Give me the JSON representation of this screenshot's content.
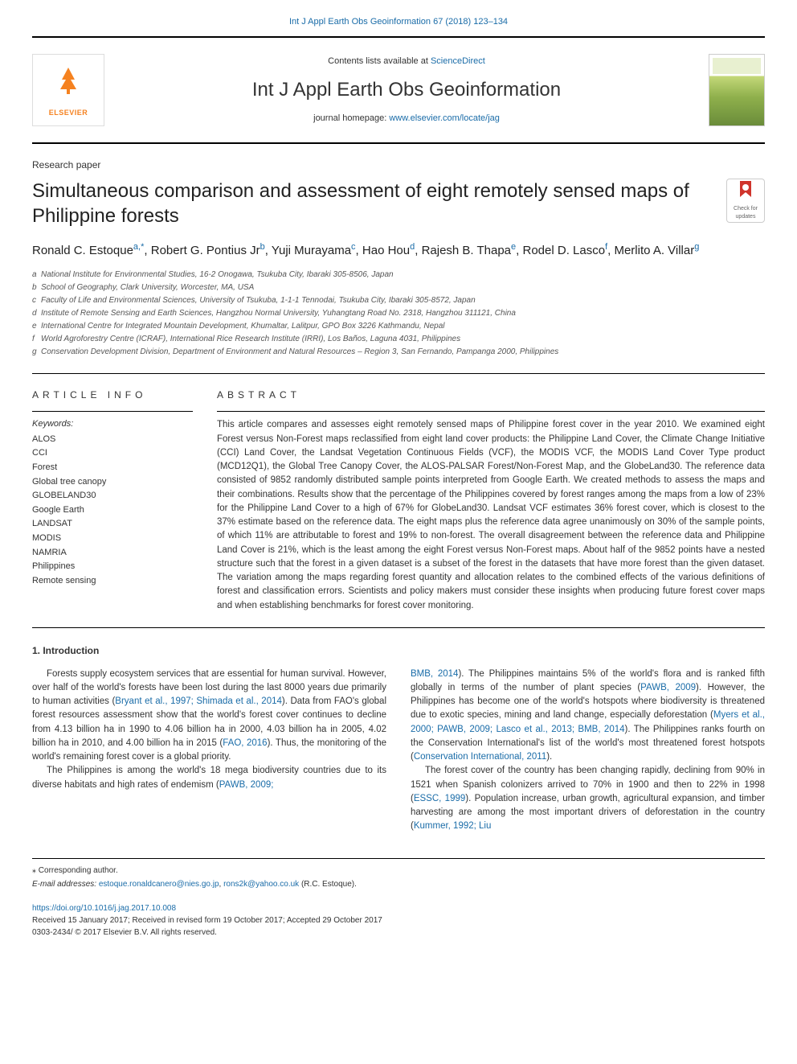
{
  "topLink": "Int J Appl Earth Obs Geoinformation 67 (2018) 123–134",
  "masthead": {
    "elsevier": "ELSEVIER",
    "contents_prefix": "Contents lists available at ",
    "contents_link": "ScienceDirect",
    "journal_title": "Int J Appl Earth Obs Geoinformation",
    "homepage_prefix": "journal homepage: ",
    "homepage_link": "www.elsevier.com/locate/jag"
  },
  "article_type": "Research paper",
  "title": "Simultaneous comparison and assessment of eight remotely sensed maps of Philippine forests",
  "updates_badge": {
    "line1": "Check for",
    "line2": "updates"
  },
  "authors": [
    {
      "name": "Ronald C. Estoque",
      "aff": "a",
      "corr": ",*"
    },
    {
      "name": "Robert G. Pontius  Jr",
      "aff": "b",
      "corr": ""
    },
    {
      "name": "Yuji Murayama",
      "aff": "c",
      "corr": ""
    },
    {
      "name": "Hao Hou",
      "aff": "d",
      "corr": ""
    },
    {
      "name": "Rajesh B. Thapa",
      "aff": "e",
      "corr": ""
    },
    {
      "name": "Rodel D. Lasco",
      "aff": "f",
      "corr": ""
    },
    {
      "name": "Merlito A. Villar",
      "aff": "g",
      "corr": ""
    }
  ],
  "affiliations": [
    {
      "marker": "a",
      "text": "National Institute for Environmental Studies, 16-2 Onogawa, Tsukuba City, Ibaraki 305-8506, Japan"
    },
    {
      "marker": "b",
      "text": "School of Geography, Clark University, Worcester, MA, USA"
    },
    {
      "marker": "c",
      "text": "Faculty of Life and Environmental Sciences, University of Tsukuba, 1-1-1 Tennodai, Tsukuba City, Ibaraki 305-8572, Japan"
    },
    {
      "marker": "d",
      "text": "Institute of Remote Sensing and Earth Sciences, Hangzhou Normal University, Yuhangtang Road No. 2318, Hangzhou 311121, China"
    },
    {
      "marker": "e",
      "text": "International Centre for Integrated Mountain Development, Khumaltar, Lalitpur, GPO Box 3226 Kathmandu, Nepal"
    },
    {
      "marker": "f",
      "text": "World Agroforestry Centre (ICRAF), International Rice Research Institute (IRRI), Los Baños, Laguna 4031, Philippines"
    },
    {
      "marker": "g",
      "text": "Conservation Development Division, Department of Environment and Natural Resources – Region 3, San Fernando, Pampanga 2000, Philippines"
    }
  ],
  "article_info": {
    "heading": "ARTICLE INFO",
    "keywords_label": "Keywords:",
    "keywords": [
      "ALOS",
      "CCI",
      "Forest",
      "Global tree canopy",
      "GLOBELAND30",
      "Google Earth",
      "LANDSAT",
      "MODIS",
      "NAMRIA",
      "Philippines",
      "Remote sensing"
    ]
  },
  "abstract": {
    "heading": "ABSTRACT",
    "text": "This article compares and assesses eight remotely sensed maps of Philippine forest cover in the year 2010. We examined eight Forest versus Non-Forest maps reclassified from eight land cover products: the Philippine Land Cover, the Climate Change Initiative (CCI) Land Cover, the Landsat Vegetation Continuous Fields (VCF), the MODIS VCF, the MODIS Land Cover Type product (MCD12Q1), the Global Tree Canopy Cover, the ALOS-PALSAR Forest/Non-Forest Map, and the GlobeLand30. The reference data consisted of 9852 randomly distributed sample points interpreted from Google Earth. We created methods to assess the maps and their combinations. Results show that the percentage of the Philippines covered by forest ranges among the maps from a low of 23% for the Philippine Land Cover to a high of 67% for GlobeLand30. Landsat VCF estimates 36% forest cover, which is closest to the 37% estimate based on the reference data. The eight maps plus the reference data agree unanimously on 30% of the sample points, of which 11% are attributable to forest and 19% to non-forest. The overall disagreement between the reference data and Philippine Land Cover is 21%, which is the least among the eight Forest versus Non-Forest maps. About half of the 9852 points have a nested structure such that the forest in a given dataset is a subset of the forest in the datasets that have more forest than the given dataset. The variation among the maps regarding forest quantity and allocation relates to the combined effects of the various definitions of forest and classification errors. Scientists and policy makers must consider these insights when producing future forest cover maps and when establishing benchmarks for forest cover monitoring."
  },
  "intro": {
    "heading": "1. Introduction",
    "paragraphs_col1": [
      {
        "plain": "Forests supply ecosystem services that are essential for human survival. However, over half of the world's forests have been lost during the last 8000 years due primarily to human activities (",
        "ref": "Bryant et al., 1997; Shimada et al., 2014",
        "tail": "). Data from FAO's global forest resources assessment show that the world's forest cover continues to decline from 4.13 billion ha in 1990 to 4.06 billion ha in 2000, 4.03 billion ha in 2005, 4.02 billion ha in 2010, and 4.00 billion ha in 2015 (",
        "ref2": "FAO, 2016",
        "tail2": "). Thus, the monitoring of the world's remaining forest cover is a global priority."
      },
      {
        "plain": "The Philippines is among the world's 18 mega biodiversity countries due to its diverse habitats and high rates of endemism (",
        "ref": "PAWB, 2009;",
        "tail": ""
      }
    ],
    "paragraphs_col2": [
      {
        "ref0": "BMB, 2014",
        "plain": "). The Philippines maintains 5% of the world's flora and is ranked fifth globally in terms of the number of plant species (",
        "ref": "PAWB, 2009",
        "tail": "). However, the Philippines has become one of the world's hotspots where biodiversity is threatened due to exotic species, mining and land change, especially deforestation (",
        "ref2": "Myers et al., 2000; PAWB, 2009; Lasco et al., 2013; BMB, 2014",
        "tail2": "). The Philippines ranks fourth on the Conservation International's list of the world's most threatened forest hotspots (",
        "ref3": "Conservation International, 2011",
        "tail3": ")."
      },
      {
        "plain": "The forest cover of the country has been changing rapidly, declining from 90% in 1521 when Spanish colonizers arrived to 70% in 1900 and then to 22% in 1998 (",
        "ref": "ESSC, 1999",
        "tail": "). Population increase, urban growth, agricultural expansion, and timber harvesting are among the most important drivers of deforestation in the country (",
        "ref2": "Kummer, 1992; Liu",
        "tail2": ""
      }
    ]
  },
  "footnotes": {
    "corr_marker": "⁎",
    "corr_text": "Corresponding author.",
    "email_label": "E-mail addresses: ",
    "emails": [
      "estoque.ronaldcanero@nies.go.jp",
      "rons2k@yahoo.co.uk"
    ],
    "email_author": " (R.C. Estoque)."
  },
  "footer": {
    "doi": "https://doi.org/10.1016/j.jag.2017.10.008",
    "dates": "Received 15 January 2017; Received in revised form 19 October 2017; Accepted 29 October 2017",
    "issn": "0303-2434/ © 2017 Elsevier B.V. All rights reserved."
  },
  "style": {
    "link_color": "#1a6ca8",
    "elsevier_orange": "#f58220",
    "rule_color": "#000000",
    "body_fontsize": 11.5,
    "title_fontsize": 24,
    "journal_title_fontsize": 24,
    "authors_fontsize": 15,
    "affiliations_fontsize": 10,
    "letter_spacing_headings": 5
  }
}
